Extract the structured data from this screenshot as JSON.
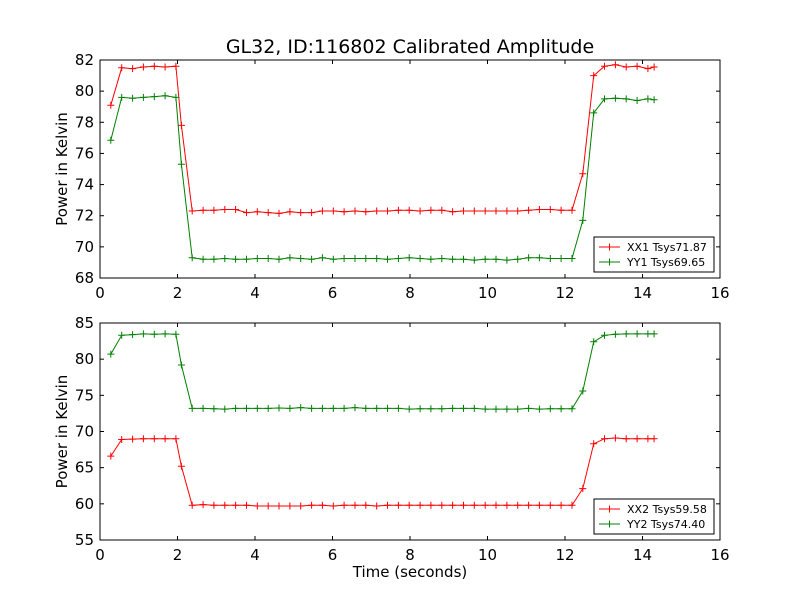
{
  "figure": {
    "title": "GL32, ID:116802 Calibrated Amplitude"
  },
  "chart_data": [
    {
      "type": "line",
      "title": "GL32, ID:116802 Calibrated Amplitude",
      "xlabel": "",
      "ylabel": "Power in Kelvin",
      "xlim": [
        0,
        16
      ],
      "ylim": [
        68,
        82
      ],
      "xticks": [
        "0",
        "2",
        "4",
        "6",
        "8",
        "10",
        "12",
        "14",
        "16"
      ],
      "yticks": [
        "68",
        "70",
        "72",
        "74",
        "76",
        "78",
        "80",
        "82"
      ],
      "grid": false,
      "legend_position": "lower-right",
      "x": [
        0.28,
        0.56,
        0.84,
        1.12,
        1.4,
        1.68,
        1.96,
        2.1,
        2.38,
        2.66,
        2.94,
        3.22,
        3.5,
        3.78,
        4.06,
        4.34,
        4.62,
        4.9,
        5.18,
        5.46,
        5.74,
        6.02,
        6.3,
        6.58,
        6.86,
        7.14,
        7.42,
        7.7,
        7.98,
        8.26,
        8.54,
        8.82,
        9.1,
        9.38,
        9.66,
        9.94,
        10.22,
        10.5,
        10.78,
        11.06,
        11.34,
        11.62,
        11.9,
        12.18,
        12.46,
        12.74,
        13.02,
        13.3,
        13.58,
        13.86,
        14.14,
        14.3
      ],
      "series": [
        {
          "name": "XX1 Tsys71.87",
          "color": "#ff0000",
          "values": [
            79.1,
            81.5,
            81.45,
            81.55,
            81.6,
            81.55,
            81.6,
            77.8,
            72.3,
            72.35,
            72.35,
            72.4,
            72.4,
            72.2,
            72.25,
            72.2,
            72.15,
            72.25,
            72.2,
            72.2,
            72.3,
            72.3,
            72.25,
            72.3,
            72.25,
            72.3,
            72.3,
            72.35,
            72.35,
            72.3,
            72.35,
            72.35,
            72.25,
            72.3,
            72.3,
            72.3,
            72.3,
            72.3,
            72.3,
            72.35,
            72.4,
            72.4,
            72.35,
            72.35,
            74.7,
            81.0,
            81.6,
            81.7,
            81.55,
            81.6,
            81.45,
            81.55
          ]
        },
        {
          "name": "YY1 Tsys69.65",
          "color": "#008000",
          "values": [
            76.85,
            79.6,
            79.55,
            79.6,
            79.65,
            79.7,
            79.6,
            75.3,
            69.3,
            69.2,
            69.2,
            69.25,
            69.2,
            69.2,
            69.25,
            69.25,
            69.2,
            69.3,
            69.25,
            69.2,
            69.3,
            69.2,
            69.25,
            69.25,
            69.25,
            69.25,
            69.2,
            69.25,
            69.3,
            69.25,
            69.2,
            69.25,
            69.2,
            69.2,
            69.15,
            69.2,
            69.2,
            69.15,
            69.2,
            69.3,
            69.3,
            69.25,
            69.25,
            69.25,
            71.7,
            78.6,
            79.5,
            79.55,
            79.5,
            79.4,
            79.5,
            79.45
          ]
        }
      ]
    },
    {
      "type": "line",
      "title": "",
      "xlabel": "Time (seconds)",
      "ylabel": "Power in Kelvin",
      "xlim": [
        0,
        16
      ],
      "ylim": [
        55,
        85
      ],
      "xticks": [
        "0",
        "2",
        "4",
        "6",
        "8",
        "10",
        "12",
        "14",
        "16"
      ],
      "yticks": [
        "55",
        "60",
        "65",
        "70",
        "75",
        "80",
        "85"
      ],
      "grid": false,
      "legend_position": "lower-right",
      "x": [
        0.28,
        0.56,
        0.84,
        1.12,
        1.4,
        1.68,
        1.96,
        2.1,
        2.38,
        2.66,
        2.94,
        3.22,
        3.5,
        3.78,
        4.06,
        4.34,
        4.62,
        4.9,
        5.18,
        5.46,
        5.74,
        6.02,
        6.3,
        6.58,
        6.86,
        7.14,
        7.42,
        7.7,
        7.98,
        8.26,
        8.54,
        8.82,
        9.1,
        9.38,
        9.66,
        9.94,
        10.22,
        10.5,
        10.78,
        11.06,
        11.34,
        11.62,
        11.9,
        12.18,
        12.46,
        12.74,
        13.02,
        13.3,
        13.58,
        13.86,
        14.14,
        14.3
      ],
      "series": [
        {
          "name": "XX2 Tsys59.58",
          "color": "#ff0000",
          "values": [
            66.6,
            68.9,
            68.95,
            69.0,
            69.0,
            69.0,
            69.0,
            65.2,
            59.8,
            59.9,
            59.8,
            59.8,
            59.8,
            59.8,
            59.7,
            59.7,
            59.7,
            59.7,
            59.7,
            59.8,
            59.8,
            59.7,
            59.8,
            59.8,
            59.8,
            59.7,
            59.8,
            59.8,
            59.8,
            59.8,
            59.8,
            59.8,
            59.8,
            59.8,
            59.8,
            59.8,
            59.8,
            59.8,
            59.8,
            59.8,
            59.8,
            59.8,
            59.8,
            59.8,
            62.1,
            68.3,
            69.0,
            69.1,
            69.0,
            69.0,
            69.0,
            69.0
          ]
        },
        {
          "name": "YY2 Tsys74.40",
          "color": "#008000",
          "values": [
            80.7,
            83.3,
            83.4,
            83.5,
            83.45,
            83.5,
            83.45,
            79.2,
            73.2,
            73.2,
            73.15,
            73.1,
            73.2,
            73.2,
            73.2,
            73.2,
            73.25,
            73.2,
            73.3,
            73.2,
            73.2,
            73.2,
            73.2,
            73.3,
            73.2,
            73.2,
            73.2,
            73.2,
            73.1,
            73.15,
            73.15,
            73.15,
            73.2,
            73.2,
            73.2,
            73.1,
            73.1,
            73.1,
            73.1,
            73.2,
            73.1,
            73.15,
            73.15,
            73.15,
            75.6,
            82.4,
            83.3,
            83.45,
            83.5,
            83.5,
            83.5,
            83.5
          ]
        }
      ]
    }
  ]
}
